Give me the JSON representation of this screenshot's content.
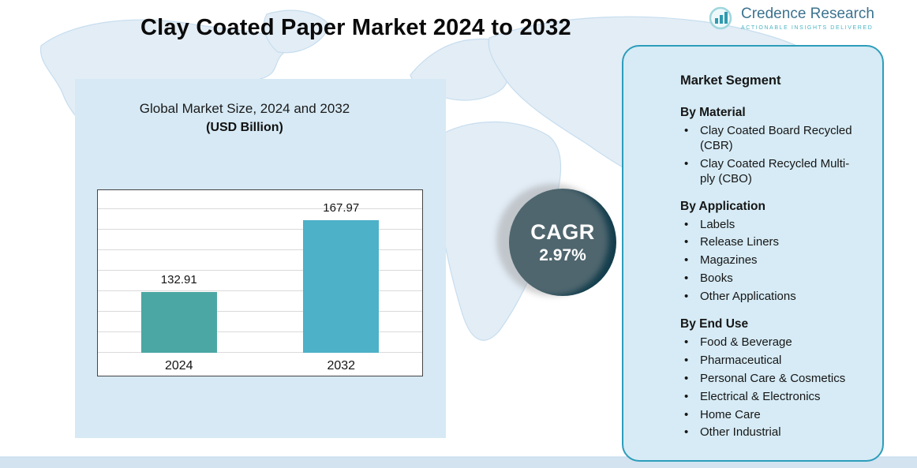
{
  "page": {
    "title": "Clay Coated Paper Market 2024 to 2032"
  },
  "logo": {
    "name": "Credence Research",
    "tagline": "Actionable Insights Delivered",
    "accent_color": "#4ab5c4",
    "name_color": "#3c7390"
  },
  "chart_panel": {
    "title": "Global Market Size, 2024 and 2032",
    "subtitle": "(USD Billion)"
  },
  "chart_data": {
    "type": "bar",
    "categories": [
      "2024",
      "2032"
    ],
    "values": [
      132.91,
      167.97
    ],
    "title": "Global Market Size, 2024 and 2032",
    "ylabel": "USD Billion",
    "ylim": [
      103,
      183
    ],
    "grid": true,
    "legend": "none",
    "bar_colors": [
      "#4ba7a3",
      "#4db1c8"
    ]
  },
  "cagr": {
    "label": "CAGR",
    "value": "2.97%"
  },
  "segments": {
    "title": "Market Segment",
    "groups": [
      {
        "heading": "By Material",
        "items": [
          "Clay Coated Board Recycled (CBR)",
          "Clay Coated Recycled Multi-ply (CBO)"
        ]
      },
      {
        "heading": "By Application",
        "items": [
          "Labels",
          "Release Liners",
          "Magazines",
          "Books",
          "Other Applications"
        ]
      },
      {
        "heading": "By End Use",
        "items": [
          "Food & Beverage",
          "Pharmaceutical",
          "Personal Care & Cosmetics",
          "Electrical & Electronics",
          "Home Care",
          "Other Industrial"
        ]
      }
    ]
  },
  "colors": {
    "panel_bg": "#d6ebf5",
    "panel_border": "#2d9dbb",
    "chart_panel_bg": "#d6e9f4",
    "cagr_bg": "#143e4d",
    "map_land": "#e3edf6"
  }
}
